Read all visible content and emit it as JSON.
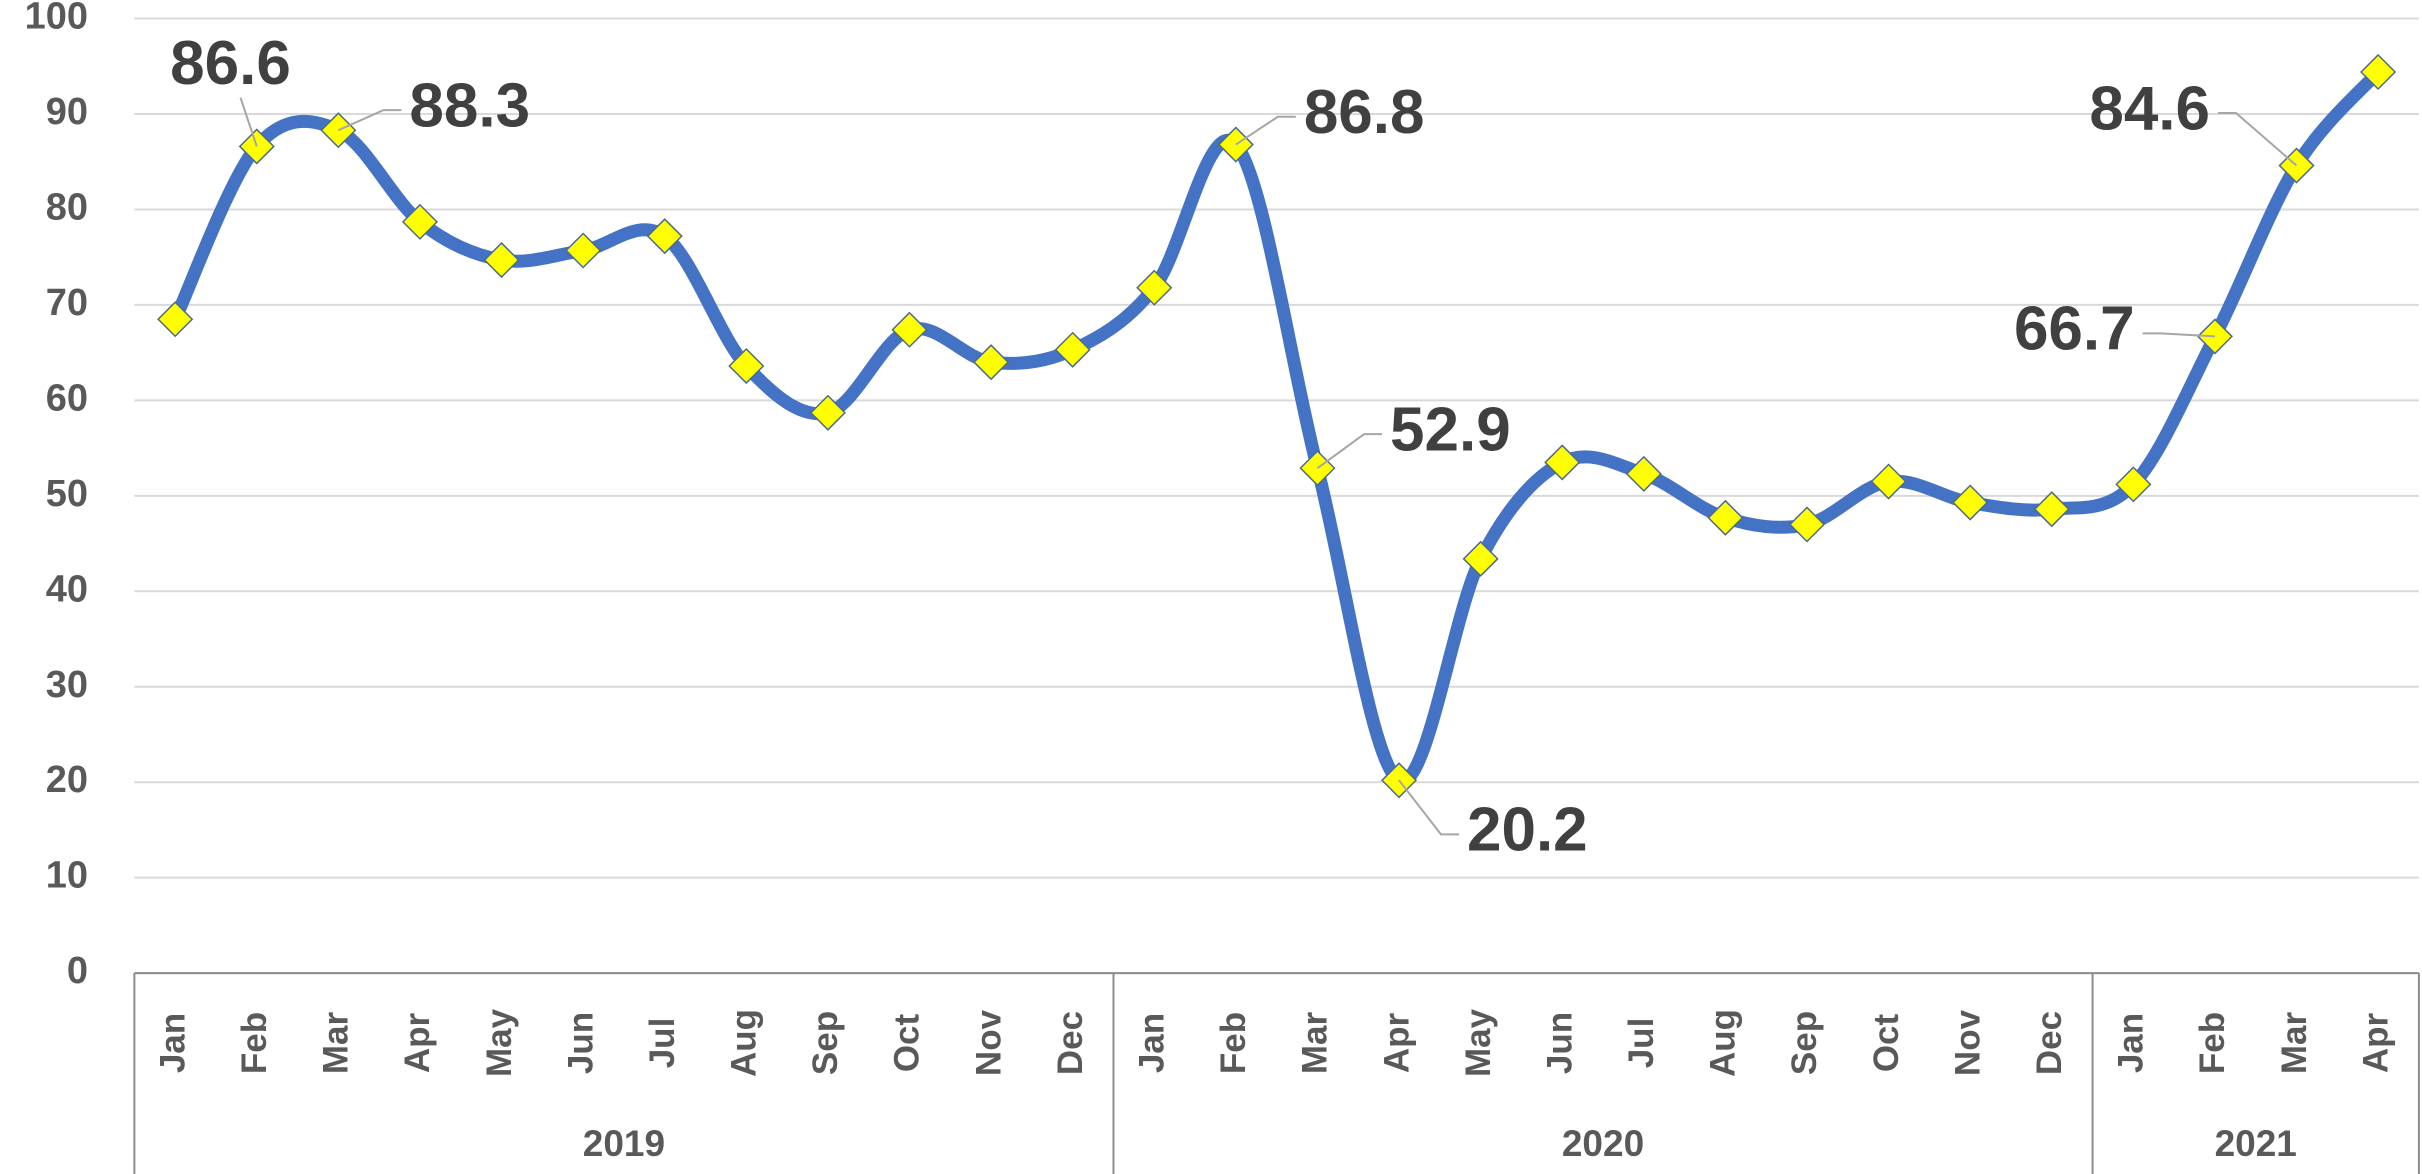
{
  "chart_data": {
    "type": "line",
    "category_groups": [
      {
        "name": "2019",
        "categories": [
          "Jan",
          "Feb",
          "Mar",
          "Apr",
          "May",
          "Jun",
          "Jul",
          "Aug",
          "Sep",
          "Oct",
          "Nov",
          "Dec"
        ]
      },
      {
        "name": "2020",
        "categories": [
          "Jan",
          "Feb",
          "Mar",
          "Apr",
          "May",
          "Jun",
          "Jul",
          "Aug",
          "Sep",
          "Oct",
          "Nov",
          "Dec"
        ]
      },
      {
        "name": "2021",
        "categories": [
          "Jan",
          "Feb",
          "Mar",
          "Apr"
        ]
      }
    ],
    "values": [
      68.5,
      86.6,
      88.3,
      78.7,
      74.7,
      75.7,
      77.2,
      63.6,
      58.7,
      67.4,
      64.0,
      65.3,
      71.8,
      86.8,
      52.9,
      20.2,
      43.4,
      53.5,
      52.3,
      47.7,
      47.0,
      51.5,
      49.3,
      48.6,
      51.2,
      66.7,
      84.6,
      94.4
    ],
    "value_labels": [
      null,
      "86.6",
      "88.3",
      null,
      null,
      null,
      null,
      null,
      null,
      null,
      null,
      null,
      null,
      "86.8",
      "52.9",
      "20.2",
      null,
      null,
      null,
      null,
      null,
      null,
      null,
      null,
      null,
      "66.7",
      "84.6",
      null
    ],
    "color": "#4472c4",
    "marker_color": "#ffff00",
    "ylim": [
      0,
      100
    ],
    "yticks": [
      0,
      10,
      20,
      30,
      40,
      50,
      60,
      70,
      80,
      90,
      100
    ],
    "grid": true
  }
}
